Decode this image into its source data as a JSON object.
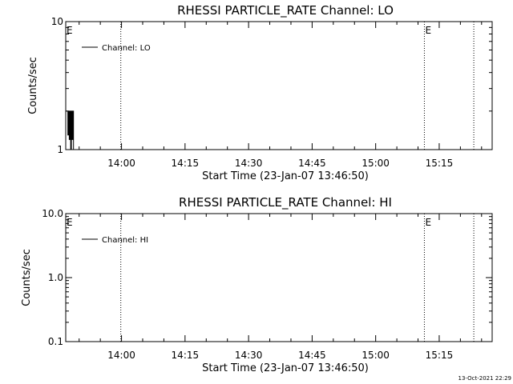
{
  "chart_data": [
    {
      "type": "line",
      "title": "RHESSI PARTICLE_RATE Channel: LO",
      "xlabel": "Start Time (23-Jan-07 13:46:50)",
      "ylabel": "Counts/sec",
      "y_scale": "log",
      "ylim": [
        1,
        10
      ],
      "y_ticks": [
        {
          "label": "10",
          "value": 10
        },
        {
          "label": "1",
          "value": 1
        }
      ],
      "x_range": [
        "13:46:50",
        "15:27:30"
      ],
      "x_ticks": [
        "14:00",
        "14:15",
        "14:30",
        "14:45",
        "15:00",
        "15:15"
      ],
      "series": [
        {
          "name": "Channel: LO",
          "x": [
            "13:46:50",
            "13:47:10",
            "13:47:20",
            "13:47:30",
            "13:47:40",
            "13:47:50",
            "13:48:00",
            "13:48:10",
            "13:48:20",
            "13:48:30",
            "13:48:40",
            "13:48:50"
          ],
          "values": [
            2,
            2,
            1.3,
            2,
            1.2,
            2,
            1,
            2,
            1.2,
            2,
            1,
            1
          ]
        }
      ],
      "markers": [
        {
          "time": "13:46:50",
          "label": "E"
        },
        {
          "time": "13:59:50",
          "label": ""
        },
        {
          "time": "15:11:30",
          "label": "E"
        },
        {
          "time": "15:23:10",
          "label": ""
        }
      ],
      "legend": "top-left",
      "grid": false
    },
    {
      "type": "line",
      "title": "RHESSI PARTICLE_RATE Channel: HI",
      "xlabel": "Start Time (23-Jan-07 13:46:50)",
      "ylabel": "Counts/sec",
      "y_scale": "log",
      "ylim": [
        0.1,
        10
      ],
      "y_ticks": [
        {
          "label": "10.0",
          "value": 10
        },
        {
          "label": "1.0",
          "value": 1
        },
        {
          "label": "0.1",
          "value": 0.1
        }
      ],
      "x_range": [
        "13:46:50",
        "15:27:30"
      ],
      "x_ticks": [
        "14:00",
        "14:15",
        "14:30",
        "14:45",
        "15:00",
        "15:15"
      ],
      "series": [
        {
          "name": "Channel: HI",
          "x": [],
          "values": []
        }
      ],
      "markers": [
        {
          "time": "13:46:50",
          "label": "E"
        },
        {
          "time": "13:59:50",
          "label": ""
        },
        {
          "time": "15:11:30",
          "label": "E"
        },
        {
          "time": "15:23:10",
          "label": ""
        }
      ],
      "legend": "top-left",
      "grid": false
    }
  ],
  "footer": {
    "timestamp": "13-Oct-2021 22:29"
  }
}
